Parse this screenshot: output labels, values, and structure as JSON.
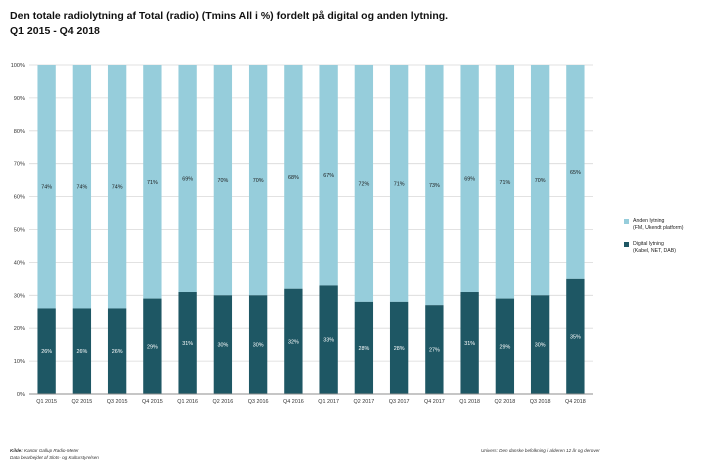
{
  "header": {
    "title_line1": "Den totale radiolytning af Total (radio) (Tmins All i %) fordelt på digital og anden lytning.",
    "title_line2": "Q1 2015  - Q4 2018"
  },
  "colors": {
    "anden": "#96cddb",
    "digital": "#1e5764",
    "grid": "#d9d9d9",
    "axis": "#8c8c8c"
  },
  "chart_data": {
    "type": "bar",
    "stacked": true,
    "percent_stacked": true,
    "categories": [
      "Q1 2015",
      "Q2 2015",
      "Q3 2015",
      "Q4 2015",
      "Q1 2016",
      "Q2 2016",
      "Q3 2016",
      "Q4 2016",
      "Q1 2017",
      "Q2 2017",
      "Q3 2017",
      "Q4 2017",
      "Q1 2018",
      "Q2 2018",
      "Q3 2018",
      "Q4 2018"
    ],
    "series": [
      {
        "name": "Digital lytning",
        "values": [
          26,
          26,
          26,
          29,
          31,
          30,
          30,
          32,
          33,
          28,
          28,
          27,
          31,
          29,
          30,
          35
        ],
        "labels": [
          "26%",
          "26%",
          "26%",
          "29%",
          "31%",
          "30%",
          "30%",
          "32%",
          "33%",
          "28%",
          "28%",
          "27%",
          "31%",
          "29%",
          "30%",
          "35%"
        ]
      },
      {
        "name": "Anden lytning",
        "values": [
          74,
          74,
          74,
          71,
          69,
          70,
          70,
          68,
          67,
          72,
          71,
          73,
          69,
          71,
          70,
          65
        ],
        "labels": [
          "74%",
          "74%",
          "74%",
          "71%",
          "69%",
          "70%",
          "70%",
          "68%",
          "67%",
          "72%",
          "71%",
          "73%",
          "69%",
          "71%",
          "70%",
          "65%"
        ]
      }
    ],
    "ylim": [
      0,
      100
    ],
    "yticks": [
      0,
      10,
      20,
      30,
      40,
      50,
      60,
      70,
      80,
      90,
      100
    ],
    "ytick_labels": [
      "0%",
      "10%",
      "20%",
      "30%",
      "40%",
      "50%",
      "60%",
      "70%",
      "80%",
      "90%",
      "100%"
    ],
    "grid": true,
    "legend_position": "right",
    "title": "Den totale radiolytning af Total (radio) (Tmins All i %) fordelt på digital og anden lytning.",
    "xlabel": "",
    "ylabel": ""
  },
  "legend": {
    "anden_line1": "Anden lytning",
    "anden_line2": "(FM, Ukendt platform)",
    "digital_line1": "Digital lytning",
    "digital_line2": "(Kabel, NET, DAB)"
  },
  "footer": {
    "source_label": "Kilde:",
    "source_text": "Kantar Gallup Radio-Meter",
    "basis_text": "Data bearbejdet af Slots- og Kulturstyrelsen",
    "universe_text": "Univers: Den danske befolkning i alderen 12 år og derover"
  }
}
